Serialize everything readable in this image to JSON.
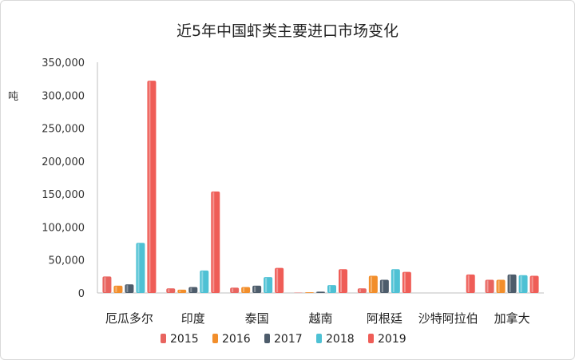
{
  "chart_data": {
    "type": "bar",
    "title": "近5年中国虾类主要进口市场变化",
    "ylabel": "吨",
    "xlabel": "",
    "ylim": [
      0,
      350000
    ],
    "yticks": [
      0,
      50000,
      100000,
      150000,
      200000,
      250000,
      300000,
      350000
    ],
    "ytick_labels": [
      "0",
      "50,000",
      "100,000",
      "150,000",
      "200,000",
      "250,000",
      "300,000",
      "350,000"
    ],
    "categories": [
      "厄瓜多尔",
      "印度",
      "泰国",
      "越南",
      "阿根廷",
      "沙特阿拉伯",
      "加拿大"
    ],
    "series": [
      {
        "name": "2015",
        "color": "#e8645f",
        "values": [
          25000,
          7000,
          8000,
          500,
          7000,
          0,
          20000
        ]
      },
      {
        "name": "2016",
        "color": "#f28e2b",
        "values": [
          11000,
          5000,
          9000,
          1000,
          26000,
          0,
          20000
        ]
      },
      {
        "name": "2017",
        "color": "#4d5c6b",
        "values": [
          13000,
          9000,
          11000,
          2000,
          20000,
          0,
          28000
        ]
      },
      {
        "name": "2018",
        "color": "#4ec1d4",
        "values": [
          76000,
          34000,
          24000,
          12000,
          36000,
          0,
          27000
        ]
      },
      {
        "name": "2019",
        "color": "#ef5d57",
        "values": [
          322000,
          154000,
          38000,
          36000,
          32000,
          28000,
          26000
        ]
      }
    ],
    "grid": false,
    "legend_position": "bottom"
  }
}
